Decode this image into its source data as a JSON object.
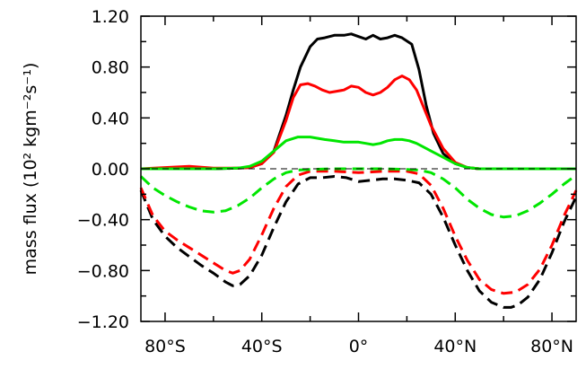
{
  "chart_data": {
    "type": "line",
    "title": "",
    "xlabel": "",
    "ylabel": "mass flux (10² kgm⁻²s⁻¹)",
    "xlim": [
      -90,
      90
    ],
    "ylim": [
      -1.2,
      1.2
    ],
    "xticks": [
      -80,
      -40,
      0,
      40,
      80
    ],
    "xtick_labels": [
      "80°S",
      "40°S",
      "0°",
      "40°N",
      "80°N"
    ],
    "yticks": [
      -1.2,
      -0.8,
      -0.4,
      0.0,
      0.4,
      0.8,
      1.2
    ],
    "ytick_labels": [
      "−1.20",
      "−0.80",
      "−0.40",
      "0.00",
      "0.40",
      "0.80",
      "1.20"
    ],
    "grid": false,
    "legend": "none",
    "zero_line": true,
    "series": [
      {
        "color": "#000000",
        "style": "solid",
        "x": [
          -90,
          -75,
          -60,
          -50,
          -45,
          -40,
          -35,
          -30,
          -27,
          -24,
          -20,
          -17,
          -14,
          -10,
          -6,
          -3,
          0,
          3,
          6,
          9,
          12,
          15,
          18,
          22,
          25,
          28,
          31,
          35,
          40,
          45,
          50,
          60,
          70,
          90
        ],
        "y": [
          0.0,
          0.0,
          0.0,
          0.005,
          0.01,
          0.04,
          0.14,
          0.42,
          0.62,
          0.8,
          0.96,
          1.02,
          1.03,
          1.05,
          1.05,
          1.06,
          1.04,
          1.02,
          1.05,
          1.02,
          1.03,
          1.05,
          1.03,
          0.98,
          0.78,
          0.5,
          0.28,
          0.12,
          0.04,
          0.01,
          0.0,
          0.0,
          0.0,
          0.0
        ]
      },
      {
        "color": "#ff0000",
        "style": "solid",
        "x": [
          -90,
          -80,
          -70,
          -60,
          -50,
          -45,
          -40,
          -35,
          -30,
          -27,
          -24,
          -21,
          -18,
          -15,
          -12,
          -9,
          -6,
          -3,
          0,
          3,
          6,
          9,
          12,
          15,
          18,
          21,
          24,
          27,
          30,
          35,
          40,
          45,
          50,
          60,
          70,
          90
        ],
        "y": [
          0.0,
          0.01,
          0.02,
          0.005,
          0.005,
          0.01,
          0.04,
          0.13,
          0.38,
          0.56,
          0.66,
          0.67,
          0.65,
          0.62,
          0.6,
          0.61,
          0.62,
          0.65,
          0.64,
          0.6,
          0.58,
          0.6,
          0.64,
          0.7,
          0.73,
          0.7,
          0.62,
          0.48,
          0.34,
          0.16,
          0.05,
          0.01,
          0.0,
          0.0,
          0.0,
          0.0
        ]
      },
      {
        "color": "#00e600",
        "style": "solid",
        "x": [
          -90,
          -80,
          -70,
          -60,
          -50,
          -45,
          -40,
          -35,
          -30,
          -25,
          -20,
          -17,
          -14,
          -10,
          -6,
          -3,
          0,
          3,
          6,
          9,
          12,
          15,
          18,
          21,
          24,
          27,
          30,
          35,
          40,
          45,
          50,
          60,
          70,
          90
        ],
        "y": [
          0.0,
          0.0,
          0.0,
          0.0,
          0.005,
          0.02,
          0.06,
          0.14,
          0.22,
          0.25,
          0.25,
          0.24,
          0.23,
          0.22,
          0.21,
          0.21,
          0.21,
          0.2,
          0.19,
          0.2,
          0.22,
          0.23,
          0.23,
          0.22,
          0.2,
          0.17,
          0.14,
          0.09,
          0.04,
          0.01,
          0.0,
          0.0,
          0.0,
          0.0
        ]
      },
      {
        "color": "#000000",
        "style": "dashed",
        "x": [
          -90,
          -85,
          -80,
          -75,
          -70,
          -65,
          -60,
          -55,
          -52,
          -49,
          -45,
          -40,
          -35,
          -30,
          -25,
          -20,
          -15,
          -10,
          -5,
          0,
          5,
          10,
          15,
          20,
          25,
          30,
          35,
          40,
          45,
          50,
          55,
          60,
          63,
          66,
          70,
          75,
          80,
          85,
          90
        ],
        "y": [
          -0.17,
          -0.4,
          -0.53,
          -0.62,
          -0.69,
          -0.76,
          -0.82,
          -0.89,
          -0.92,
          -0.91,
          -0.84,
          -0.68,
          -0.46,
          -0.26,
          -0.12,
          -0.07,
          -0.07,
          -0.06,
          -0.07,
          -0.1,
          -0.09,
          -0.08,
          -0.08,
          -0.09,
          -0.11,
          -0.2,
          -0.38,
          -0.6,
          -0.8,
          -0.96,
          -1.05,
          -1.09,
          -1.09,
          -1.07,
          -1.01,
          -0.87,
          -0.66,
          -0.42,
          -0.22
        ]
      },
      {
        "color": "#ff0000",
        "style": "dashed",
        "x": [
          -90,
          -85,
          -80,
          -75,
          -70,
          -65,
          -60,
          -55,
          -52,
          -49,
          -45,
          -40,
          -35,
          -30,
          -25,
          -20,
          -10,
          0,
          10,
          20,
          25,
          30,
          35,
          40,
          45,
          50,
          55,
          60,
          65,
          70,
          75,
          80,
          85,
          90
        ],
        "y": [
          -0.15,
          -0.37,
          -0.49,
          -0.56,
          -0.62,
          -0.68,
          -0.74,
          -0.8,
          -0.82,
          -0.8,
          -0.71,
          -0.52,
          -0.31,
          -0.14,
          -0.05,
          -0.02,
          -0.02,
          -0.03,
          -0.02,
          -0.02,
          -0.04,
          -0.13,
          -0.31,
          -0.53,
          -0.72,
          -0.87,
          -0.95,
          -0.98,
          -0.97,
          -0.91,
          -0.79,
          -0.6,
          -0.37,
          -0.17
        ]
      },
      {
        "color": "#00e600",
        "style": "dashed",
        "x": [
          -90,
          -85,
          -80,
          -75,
          -70,
          -65,
          -60,
          -55,
          -50,
          -45,
          -40,
          -35,
          -30,
          -25,
          -20,
          -10,
          0,
          10,
          20,
          25,
          30,
          35,
          40,
          45,
          50,
          55,
          60,
          65,
          70,
          75,
          80,
          85,
          90
        ],
        "y": [
          -0.06,
          -0.15,
          -0.21,
          -0.26,
          -0.3,
          -0.33,
          -0.34,
          -0.33,
          -0.29,
          -0.23,
          -0.15,
          -0.08,
          -0.03,
          -0.01,
          -0.005,
          0.0,
          0.0,
          0.0,
          -0.005,
          -0.01,
          -0.03,
          -0.08,
          -0.15,
          -0.24,
          -0.31,
          -0.36,
          -0.38,
          -0.37,
          -0.33,
          -0.27,
          -0.2,
          -0.12,
          -0.05
        ]
      }
    ]
  }
}
